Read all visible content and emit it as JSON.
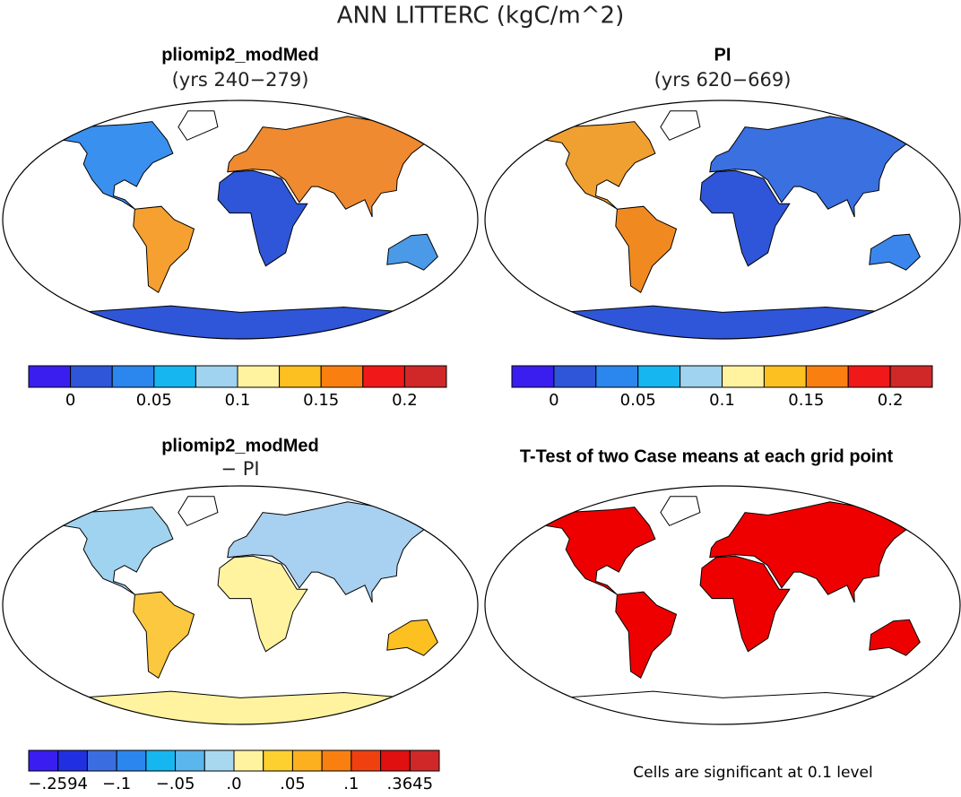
{
  "title": "ANN LITTERC (kgC/m^2)",
  "panels": [
    {
      "title": "pliomip2_modMed",
      "subtitle": "(yrs 240−279)"
    },
    {
      "title": "PI",
      "subtitle": "(yrs 620−669)"
    },
    {
      "title": "pliomip2_modMed",
      "subtitle": "− PI"
    },
    {
      "title": "T-Test of two Case means at each grid point"
    }
  ],
  "colorbars": [
    {
      "colors": [
        "#3a1ef0",
        "#2f56d8",
        "#2b86ee",
        "#16b6f0",
        "#9fd3f0",
        "#fff3a0",
        "#fcc020",
        "#f98010",
        "#f01818",
        "#d02828"
      ],
      "labels": [
        "0",
        "0.05",
        "0.1",
        "0.15",
        "0.2"
      ]
    },
    {
      "colors": [
        "#3a1ef0",
        "#2f56d8",
        "#2b86ee",
        "#16b6f0",
        "#9fd3f0",
        "#fff3a0",
        "#fcc020",
        "#f98010",
        "#f01818",
        "#d02828"
      ],
      "labels": [
        "0",
        "0.05",
        "0.1",
        "0.15",
        "0.2"
      ]
    },
    {
      "colors": [
        "#3a1ef0",
        "#2030e0",
        "#3a6ee0",
        "#2b86ee",
        "#16b6f0",
        "#5ab6ec",
        "#a8d8f0",
        "#fff3a0",
        "#fdd030",
        "#fcb020",
        "#f98010",
        "#f04010",
        "#e01010",
        "#d02828"
      ],
      "labels": [
        "−.2594",
        "−.1",
        "−.05",
        ".0",
        ".05",
        ".1",
        ".3645"
      ]
    }
  ],
  "footnote": "Cells are significant at 0.1 level"
}
